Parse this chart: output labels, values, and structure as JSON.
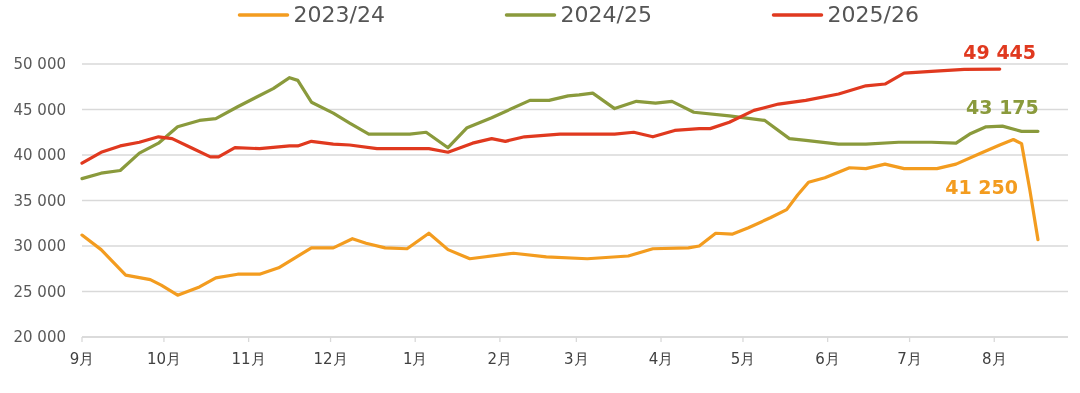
{
  "chart_data": {
    "type": "line",
    "legend": "top",
    "grid": "y",
    "xlim": [
      "2025-09-01",
      "2026-08-28"
    ],
    "xticks": [
      {
        "value": "2025-09-01",
        "label": "9月"
      },
      {
        "value": "2025-10-01",
        "label": "10月"
      },
      {
        "value": "2025-11-01",
        "label": "11月"
      },
      {
        "value": "2025-12-01",
        "label": "12月"
      },
      {
        "value": "2026-01-01",
        "label": "1月"
      },
      {
        "value": "2026-02-01",
        "label": "2月"
      },
      {
        "value": "2026-03-01",
        "label": "3月"
      },
      {
        "value": "2026-04-01",
        "label": "4月"
      },
      {
        "value": "2026-05-01",
        "label": "5月"
      },
      {
        "value": "2026-06-01",
        "label": "6月"
      },
      {
        "value": "2026-07-01",
        "label": "7月"
      },
      {
        "value": "2026-08-01",
        "label": "8月"
      }
    ],
    "ylim": [
      20000,
      50000
    ],
    "yticks": [
      {
        "value": 20000,
        "label": "20 000"
      },
      {
        "value": 25000,
        "label": "25 000"
      },
      {
        "value": 30000,
        "label": "30 000"
      },
      {
        "value": 35000,
        "label": "35 000"
      },
      {
        "value": 40000,
        "label": "40 000"
      },
      {
        "value": 45000,
        "label": "45 000"
      },
      {
        "value": 50000,
        "label": "50 000"
      }
    ],
    "series": [
      {
        "name": "2023/24",
        "color": "#f39c1f",
        "x": [
          "2025-09-01",
          "2025-09-08",
          "2025-09-17",
          "2025-09-26",
          "2025-09-30",
          "2025-10-06",
          "2025-10-14",
          "2025-10-20",
          "2025-10-28",
          "2025-11-05",
          "2025-11-12",
          "2025-11-18",
          "2025-11-24",
          "2025-12-02",
          "2025-12-09",
          "2025-12-14",
          "2025-12-21",
          "2025-12-29",
          "2026-01-06",
          "2026-01-13",
          "2026-01-21",
          "2026-02-06",
          "2026-02-18",
          "2026-03-05",
          "2026-03-20",
          "2026-03-29",
          "2026-04-11",
          "2026-04-15",
          "2026-04-21",
          "2026-04-27",
          "2026-05-03",
          "2026-05-11",
          "2026-05-17",
          "2026-05-21",
          "2026-05-25",
          "2026-05-31",
          "2026-06-09",
          "2026-06-15",
          "2026-06-22",
          "2026-06-29",
          "2026-07-11",
          "2026-07-18",
          "2026-07-27",
          "2026-08-03",
          "2026-08-08",
          "2026-08-11",
          "2026-08-14",
          "2026-08-17"
        ],
        "values": [
          31200,
          29600,
          26800,
          26300,
          25700,
          24600,
          25500,
          26500,
          26900,
          26900,
          27600,
          28700,
          29800,
          29800,
          30800,
          30300,
          29800,
          29700,
          31400,
          29600,
          28600,
          29200,
          28800,
          28600,
          28900,
          29700,
          29800,
          30000,
          31400,
          31300,
          32000,
          33100,
          34000,
          35600,
          37000,
          37500,
          38600,
          38500,
          39000,
          38500,
          38500,
          39000,
          40200,
          41100,
          41700,
          41250,
          36200,
          30700
        ]
      },
      {
        "name": "2024/25",
        "color": "#8a9a3c",
        "x": [
          "2025-09-01",
          "2025-09-08",
          "2025-09-15",
          "2025-09-22",
          "2025-09-29",
          "2025-10-06",
          "2025-10-14",
          "2025-10-20",
          "2025-10-28",
          "2025-11-10",
          "2025-11-16",
          "2025-11-19",
          "2025-11-24",
          "2025-12-02",
          "2025-12-08",
          "2025-12-15",
          "2025-12-30",
          "2026-01-05",
          "2026-01-13",
          "2026-01-20",
          "2026-01-29",
          "2026-02-12",
          "2026-02-19",
          "2026-02-26",
          "2026-03-02",
          "2026-03-07",
          "2026-03-15",
          "2026-03-23",
          "2026-03-30",
          "2026-04-05",
          "2026-04-13",
          "2026-04-26",
          "2026-05-09",
          "2026-05-18",
          "2026-05-24",
          "2026-06-05",
          "2026-06-15",
          "2026-06-27",
          "2026-07-09",
          "2026-07-18",
          "2026-07-23",
          "2026-07-29",
          "2026-08-04",
          "2026-08-11",
          "2026-08-17"
        ],
        "values": [
          37400,
          38000,
          38300,
          40200,
          41300,
          43100,
          43800,
          44000,
          45300,
          47300,
          48500,
          48200,
          45800,
          44600,
          43500,
          42300,
          42300,
          42500,
          40800,
          43000,
          44100,
          46000,
          46000,
          46500,
          46600,
          46800,
          45100,
          45900,
          45700,
          45900,
          44700,
          44300,
          43800,
          41800,
          41600,
          41200,
          41200,
          41400,
          41400,
          41300,
          42300,
          43100,
          43175,
          42600,
          42600
        ]
      },
      {
        "name": "2025/26",
        "color": "#e0391f",
        "x": [
          "2025-09-01",
          "2025-09-08",
          "2025-09-15",
          "2025-09-22",
          "2025-09-29",
          "2025-10-04",
          "2025-10-11",
          "2025-10-18",
          "2025-10-21",
          "2025-10-27",
          "2025-11-05",
          "2025-11-16",
          "2025-11-19",
          "2025-11-24",
          "2025-12-02",
          "2025-12-08",
          "2025-12-18",
          "2026-01-06",
          "2026-01-13",
          "2026-01-22",
          "2026-01-29",
          "2026-02-03",
          "2026-02-10",
          "2026-02-23",
          "2026-03-15",
          "2026-03-22",
          "2026-03-29",
          "2026-04-06",
          "2026-04-15",
          "2026-04-19",
          "2026-04-26",
          "2026-05-05",
          "2026-05-14",
          "2026-05-24",
          "2026-06-05",
          "2026-06-15",
          "2026-06-22",
          "2026-06-29",
          "2026-07-09",
          "2026-07-21",
          "2026-08-03"
        ],
        "values": [
          39100,
          40300,
          41000,
          41400,
          42000,
          41800,
          40800,
          39800,
          39800,
          40800,
          40700,
          41000,
          41000,
          41500,
          41200,
          41100,
          40700,
          40700,
          40300,
          41300,
          41800,
          41500,
          42000,
          42300,
          42300,
          42500,
          42000,
          42700,
          42900,
          42900,
          43600,
          44900,
          45600,
          46000,
          46700,
          47600,
          47800,
          49000,
          49200,
          49400,
          49445
        ]
      }
    ],
    "annotations": [
      {
        "text": "41 250",
        "x": "2026-08-11",
        "y": 41250
      },
      {
        "text": "43 175",
        "x": "2026-08-04",
        "y": 43175
      },
      {
        "text": "49 445",
        "x": "2026-08-03",
        "y": 49445
      }
    ]
  }
}
